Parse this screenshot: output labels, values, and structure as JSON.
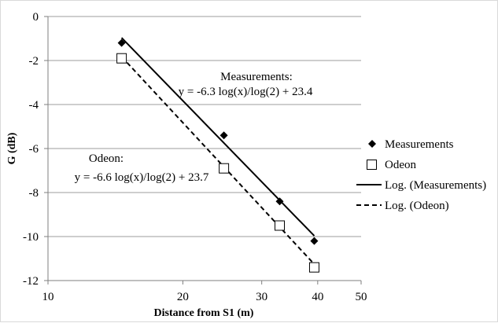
{
  "chart_data": {
    "type": "scatter",
    "title": "",
    "xlabel": "Distance from S1 (m)",
    "ylabel": "G (dB)",
    "x_scale": "log",
    "xlim": [
      10,
      50
    ],
    "ylim": [
      -12,
      0
    ],
    "x_ticks": [
      "10",
      "20",
      "30",
      "40",
      "50"
    ],
    "y_ticks": [
      "0",
      "-2",
      "-4",
      "-6",
      "-8",
      "-10",
      "-12"
    ],
    "grid": "horizontal",
    "legend_position": "right",
    "series": [
      {
        "name": "Measurements",
        "marker": "diamond-filled",
        "x": [
          14.6,
          24.7,
          32.9,
          39.3
        ],
        "y": [
          -1.2,
          -5.4,
          -8.4,
          -10.2
        ]
      },
      {
        "name": "Odeon",
        "marker": "square-open",
        "x": [
          14.6,
          24.7,
          32.9,
          39.3
        ],
        "y": [
          -1.9,
          -6.9,
          -9.5,
          -11.4
        ]
      }
    ],
    "trendlines": [
      {
        "name": "Log. (Measurements)",
        "style": "solid",
        "slope": -6.3,
        "intercept": 23.4,
        "x_range": [
          14.6,
          39.3
        ]
      },
      {
        "name": "Log. (Odeon)",
        "style": "dashed",
        "slope": -6.6,
        "intercept": 23.7,
        "x_range": [
          14.6,
          39.3
        ]
      }
    ],
    "annotations": {
      "measurements_title": "Measurements:",
      "measurements_equation": "y = -6.3  log(x)/log(2)  + 23.4",
      "odeon_title": "Odeon:",
      "odeon_equation": "y = -6.6  log(x)/log(2)  + 23.7"
    }
  }
}
